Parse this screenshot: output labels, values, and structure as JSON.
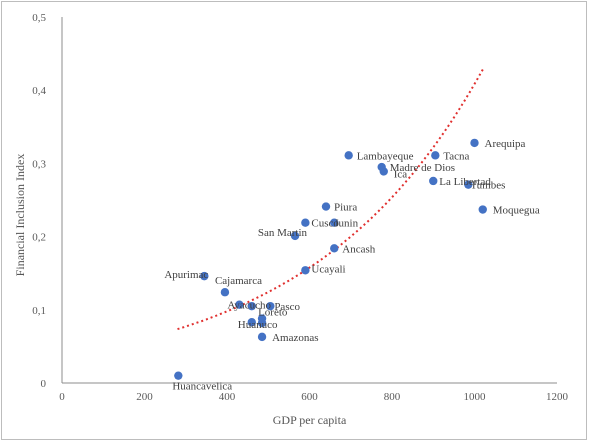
{
  "chart_data": {
    "type": "scatter",
    "title": "",
    "xlabel": "GDP per capita",
    "ylabel": "Financial Inclusion Index",
    "xlim": [
      0,
      1200
    ],
    "ylim": [
      0,
      0.5
    ],
    "xticks": [
      "0",
      "200",
      "400",
      "600",
      "800",
      "1000",
      "1200"
    ],
    "yticks": [
      "0",
      "0,1",
      "0,2",
      "0,3",
      "0,4",
      "0,5"
    ],
    "grid": false,
    "marker_color": "#4472c4",
    "trendline": {
      "type": "exponential",
      "color": "#e0302f",
      "style": "dotted",
      "a": 0.0378,
      "b": 0.00238,
      "x_range": [
        280,
        1020
      ]
    },
    "points": [
      {
        "label": "Arequipa",
        "x": 1000,
        "y": 0.328
      },
      {
        "label": "Tacna",
        "x": 905,
        "y": 0.311
      },
      {
        "label": "Lambayeque",
        "x": 695,
        "y": 0.311
      },
      {
        "label": "Madre de Dios",
        "x": 775,
        "y": 0.295
      },
      {
        "label": "Ica",
        "x": 780,
        "y": 0.289
      },
      {
        "label": "La Libertad",
        "x": 900,
        "y": 0.276
      },
      {
        "label": "Tumbes",
        "x": 985,
        "y": 0.271
      },
      {
        "label": "Moquegua",
        "x": 1020,
        "y": 0.237
      },
      {
        "label": "Piura",
        "x": 640,
        "y": 0.241
      },
      {
        "label": "Cusco",
        "x": 590,
        "y": 0.219
      },
      {
        "label": "Junin",
        "x": 660,
        "y": 0.219
      },
      {
        "label": "San Martin",
        "x": 565,
        "y": 0.201
      },
      {
        "label": "Ancash",
        "x": 660,
        "y": 0.184
      },
      {
        "label": "Ucayali",
        "x": 590,
        "y": 0.154
      },
      {
        "label": "Apurimac",
        "x": 345,
        "y": 0.146
      },
      {
        "label": "Cajamarca",
        "x": 395,
        "y": 0.124
      },
      {
        "label": "Ayacucho",
        "x": 430,
        "y": 0.107
      },
      {
        "label": "Pasco",
        "x": 505,
        "y": 0.105
      },
      {
        "label": "",
        "x": 460,
        "y": 0.105
      },
      {
        "label": "Loreto",
        "x": 485,
        "y": 0.088
      },
      {
        "label": "Huanuco",
        "x": 460,
        "y": 0.083
      },
      {
        "label": "",
        "x": 485,
        "y": 0.082
      },
      {
        "label": "Amazonas",
        "x": 485,
        "y": 0.063
      },
      {
        "label": "Huancavelica",
        "x": 282,
        "y": 0.01
      }
    ]
  }
}
